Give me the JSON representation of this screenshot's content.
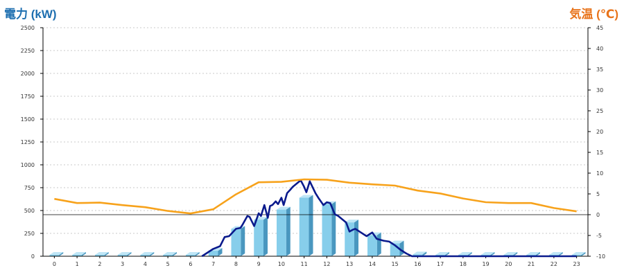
{
  "colors": {
    "left_axis_title": "#1e6fb0",
    "right_axis_title": "#e8731a",
    "bar_fill": "#87ceeb",
    "bar_side": "#4a97bf",
    "bar_top": "#bfe6f6",
    "power_line": "#0a1a8c",
    "temperature_line": "#f7a21b",
    "grid": "#c8c8c8",
    "axis": "#000000"
  },
  "chart_data": {
    "type": "bar",
    "ylabel": "電力 (kW)",
    "y2label": "気温 (℃)",
    "categories": [
      "0",
      "1",
      "2",
      "3",
      "4",
      "5",
      "6",
      "7",
      "8",
      "9",
      "10",
      "11",
      "12",
      "13",
      "14",
      "15",
      "16",
      "17",
      "18",
      "19",
      "20",
      "21",
      "22",
      "23"
    ],
    "ylim": [
      0,
      2500
    ],
    "y_ticks": [
      "0",
      "250",
      "500",
      "750",
      "1000",
      "1250",
      "1500",
      "1750",
      "2000",
      "2250",
      "2500"
    ],
    "y2lim": [
      -10,
      45
    ],
    "y2_ticks": [
      "-10",
      "-5",
      "0",
      "5",
      "10",
      "15",
      "20",
      "25",
      "30",
      "35",
      "40",
      "45"
    ],
    "grid": true,
    "series": [
      {
        "type": "bar",
        "axis": "left",
        "values": [
          0,
          0,
          0,
          0,
          0,
          0,
          0,
          60,
          300,
          400,
          510,
          640,
          570,
          370,
          230,
          140,
          20,
          0,
          0,
          0,
          0,
          0,
          0,
          0
        ]
      },
      {
        "type": "line",
        "axis": "left",
        "x": [
          6.5,
          7.0,
          7.3,
          7.5,
          7.7,
          8.0,
          8.2,
          8.3,
          8.5,
          8.6,
          8.8,
          9.0,
          9.1,
          9.25,
          9.4,
          9.5,
          9.6,
          9.75,
          9.85,
          10.0,
          10.1,
          10.25,
          10.4,
          10.5,
          10.7,
          10.85,
          11.0,
          11.1,
          11.25,
          11.5,
          11.65,
          11.85,
          12.0,
          12.15,
          12.35,
          12.5,
          12.7,
          12.85,
          13.0,
          13.15,
          13.25,
          13.5,
          13.75,
          14.0,
          14.2,
          14.35,
          14.5,
          14.75,
          15.0,
          15.25,
          15.5,
          15.75,
          16.0,
          16.5,
          17.0,
          18.0,
          19.0,
          20.0,
          21.0,
          22.0,
          23.0
        ],
        "values": [
          0,
          80,
          110,
          210,
          220,
          300,
          310,
          350,
          440,
          430,
          330,
          470,
          440,
          560,
          420,
          550,
          560,
          600,
          570,
          640,
          560,
          690,
          730,
          760,
          800,
          830,
          760,
          700,
          820,
          690,
          630,
          560,
          590,
          580,
          460,
          440,
          400,
          370,
          270,
          290,
          300,
          260,
          220,
          260,
          190,
          180,
          170,
          160,
          120,
          70,
          30,
          0,
          0,
          0,
          0,
          0,
          0,
          0,
          0,
          0,
          0
        ]
      },
      {
        "type": "line",
        "axis": "right",
        "x": [
          0,
          1,
          2,
          3,
          4,
          5,
          6,
          7,
          8,
          9,
          10,
          11,
          12,
          13,
          14,
          15,
          16,
          17,
          18,
          19,
          20,
          21,
          22,
          23
        ],
        "values": [
          3.8,
          2.8,
          2.9,
          2.3,
          1.8,
          0.9,
          0.3,
          1.3,
          4.9,
          7.8,
          7.9,
          8.5,
          8.4,
          7.7,
          7.3,
          7.0,
          5.8,
          5.1,
          3.9,
          3.0,
          2.8,
          2.8,
          1.6,
          0.8
        ]
      }
    ]
  }
}
